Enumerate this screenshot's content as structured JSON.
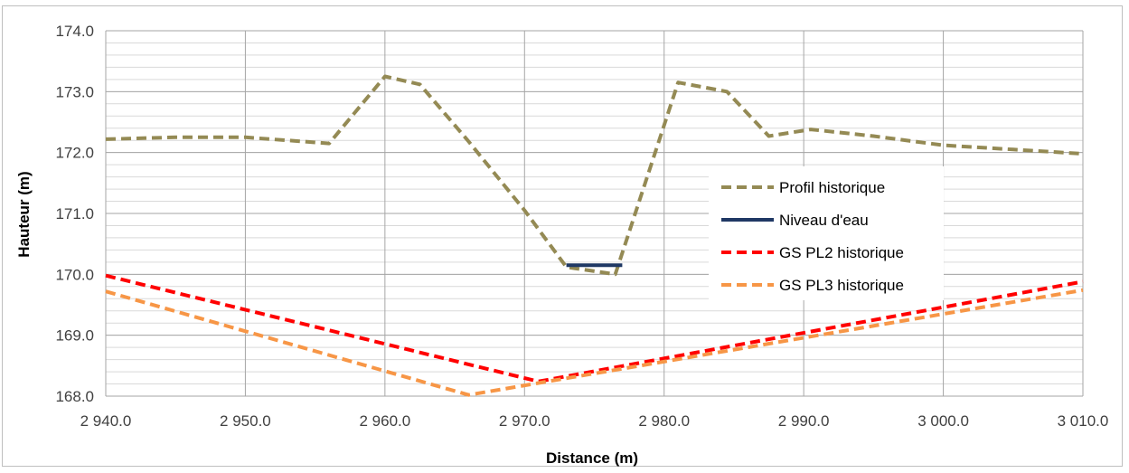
{
  "chart_data": {
    "type": "line",
    "xlabel": "Distance (m)",
    "ylabel": "Hauteur (m)",
    "xlim": [
      2940,
      3010
    ],
    "ylim": [
      168,
      174
    ],
    "x_ticks": [
      2940,
      2950,
      2960,
      2970,
      2980,
      2990,
      3000,
      3010
    ],
    "x_tick_labels": [
      "2 940.0",
      "2 950.0",
      "2 960.0",
      "2 970.0",
      "2 980.0",
      "2 990.0",
      "3 000.0",
      "3 010.0"
    ],
    "y_ticks": [
      168,
      169,
      170,
      171,
      172,
      173,
      174
    ],
    "y_tick_labels": [
      "168.0",
      "169.0",
      "170.0",
      "171.0",
      "172.0",
      "173.0",
      "174.0"
    ],
    "grid": true,
    "legend_position": "right",
    "series": [
      {
        "name": "Profil historique",
        "color": "#948a54",
        "style": "dashed",
        "x": [
          2940,
          2945,
          2950,
          2956,
          2960,
          2962.5,
          2966,
          2970,
          2973,
          2976.5,
          2981,
          2984.5,
          2987.5,
          2990.5,
          2995,
          3000,
          3005,
          3010
        ],
        "y": [
          172.22,
          172.25,
          172.25,
          172.15,
          173.25,
          173.12,
          172.18,
          171.05,
          170.12,
          170.0,
          173.15,
          173.0,
          172.27,
          172.38,
          172.27,
          172.12,
          172.05,
          171.98
        ]
      },
      {
        "name": "Niveau d'eau",
        "color": "#1f3864",
        "style": "solid",
        "x": [
          2973,
          2977
        ],
        "y": [
          170.15,
          170.15
        ]
      },
      {
        "name": "GS PL2 historique",
        "color": "#ff0000",
        "style": "dashed",
        "x": [
          2940,
          2971,
          3010
        ],
        "y": [
          169.98,
          168.24,
          169.88
        ]
      },
      {
        "name": "GS PL3 historique",
        "color": "#f79646",
        "style": "dashed",
        "x": [
          2940,
          2966,
          3010
        ],
        "y": [
          169.72,
          168.02,
          169.74
        ]
      }
    ]
  }
}
